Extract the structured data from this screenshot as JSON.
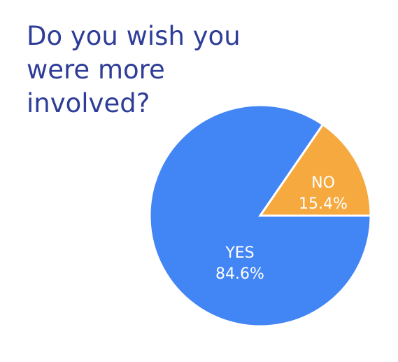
{
  "chart_data": {
    "type": "pie",
    "title": "Do you wish you were more involved?",
    "categories": [
      "YES",
      "NO"
    ],
    "values": [
      84.6,
      15.4
    ],
    "value_labels": [
      "84.6%",
      "15.4%"
    ],
    "colors": [
      "#4285f4",
      "#f6a93f"
    ]
  }
}
